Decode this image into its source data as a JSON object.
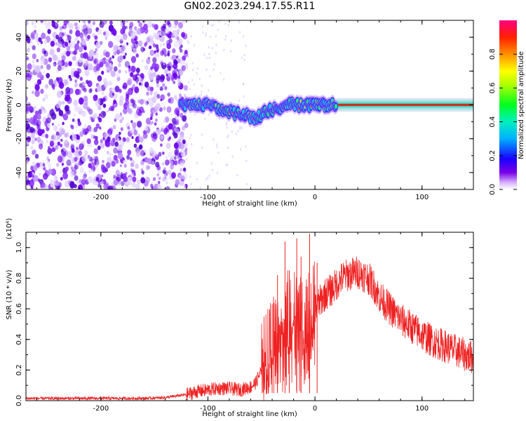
{
  "title": "GN02.2023.294.17.55.R11",
  "chart_data": [
    {
      "type": "heatmap",
      "title": "GN02.2023.294.17.55.R11",
      "xlabel": "Height of straight line (km)",
      "ylabel": "Frequency (Hz)",
      "xlim": [
        -270,
        148
      ],
      "ylim": [
        -50,
        50
      ],
      "x_ticks": [
        -200,
        -100,
        0,
        100
      ],
      "y_ticks": [
        -40,
        -20,
        0,
        20,
        40
      ],
      "colorbar": {
        "label": "Normalized spectral amplitude",
        "range": [
          0,
          1
        ],
        "ticks": [
          0.0,
          0.2,
          0.4,
          0.6,
          0.8
        ],
        "colormap": "rainbow (white-purple-blue-cyan-green-yellow-red-magenta)"
      },
      "noise_region_x": [
        -270,
        -120
      ],
      "signal_ridge": {
        "x": [
          -125,
          -115,
          -105,
          -95,
          -85,
          -75,
          -65,
          -55,
          -45,
          -35,
          -25,
          -15,
          -5,
          10,
          40,
          80,
          148
        ],
        "y": [
          0,
          1,
          0,
          -1,
          -3,
          -5,
          -6,
          -8,
          -4,
          -2,
          1,
          0,
          0,
          0,
          0,
          0,
          0
        ]
      }
    },
    {
      "type": "line",
      "xlabel": "Height of straight line (km)",
      "ylabel": "SNR (10 * v/v)",
      "y_multiplier": "(x10⁴)",
      "xlim": [
        -270,
        148
      ],
      "ylim": [
        0,
        1.1
      ],
      "x_ticks": [
        -200,
        -100,
        0,
        100
      ],
      "y_ticks": [
        0.0,
        0.2,
        0.4,
        0.6,
        0.8,
        1.0
      ],
      "line_color": "#ee2222",
      "series": [
        {
          "x": [
            -270,
            -250,
            -220,
            -200,
            -180,
            -160,
            -140,
            -120,
            -110,
            -100,
            -90,
            -80,
            -70,
            -60,
            -55,
            -50,
            -45,
            -40,
            -35,
            -30,
            -25,
            -20,
            -15,
            -10,
            -5,
            0,
            5,
            10,
            15,
            20,
            25,
            30,
            35,
            40,
            45,
            50,
            55,
            60,
            70,
            80,
            90,
            100,
            110,
            120,
            130,
            140,
            148
          ],
          "y": [
            0.015,
            0.015,
            0.015,
            0.015,
            0.015,
            0.015,
            0.02,
            0.04,
            0.06,
            0.07,
            0.08,
            0.08,
            0.07,
            0.09,
            0.12,
            0.2,
            0.3,
            0.4,
            0.5,
            0.55,
            0.55,
            0.55,
            0.52,
            0.5,
            0.55,
            0.6,
            0.65,
            0.7,
            0.72,
            0.76,
            0.8,
            0.82,
            0.83,
            0.84,
            0.82,
            0.8,
            0.75,
            0.68,
            0.6,
            0.53,
            0.48,
            0.43,
            0.39,
            0.36,
            0.33,
            0.3,
            0.28
          ]
        }
      ],
      "spikes": [
        {
          "x": -40,
          "y": 0.63
        },
        {
          "x": -35,
          "y": 0.82
        },
        {
          "x": -28,
          "y": 1.04
        },
        {
          "x": -24,
          "y": 0.85
        },
        {
          "x": -17,
          "y": 1.06
        },
        {
          "x": -13,
          "y": 0.94
        },
        {
          "x": -5,
          "y": 1.09
        },
        {
          "x": 2,
          "y": 0.9
        }
      ]
    }
  ]
}
